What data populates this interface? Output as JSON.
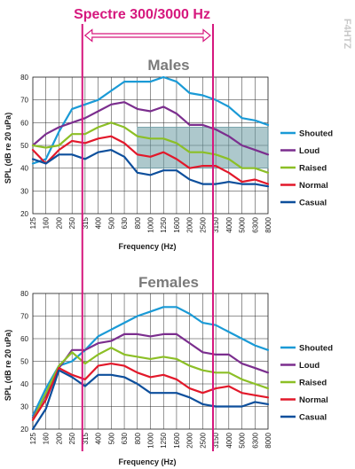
{
  "banner": {
    "title": "Spectre 300/3000 Hz",
    "color": "#d6187e",
    "band_hz": [
      300,
      3000
    ]
  },
  "watermark": "F4HTZ",
  "chart_data": [
    {
      "type": "line",
      "title": "Males",
      "xlabel": "Frequency (Hz)",
      "ylabel": "SPL (dB re 20 uPa)",
      "ylim": [
        20,
        80
      ],
      "yticks": [
        20,
        30,
        40,
        50,
        60,
        70,
        80
      ],
      "grid": true,
      "legend_position": "right",
      "highlight_region": {
        "x_from": "800",
        "x_to": "8000",
        "y_from": 40,
        "y_to": 58,
        "color": "#6a9aa3"
      },
      "categories": [
        "125",
        "160",
        "200",
        "250",
        "315",
        "400",
        "500",
        "630",
        "800",
        "1000",
        "1250",
        "1600",
        "2000",
        "2500",
        "3150",
        "4000",
        "5000",
        "6300",
        "8000"
      ],
      "series": [
        {
          "name": "Shouted",
          "color": "#1a9ad6",
          "values": [
            42,
            44,
            56,
            66,
            68,
            70,
            74,
            78,
            78,
            78,
            80,
            78,
            73,
            72,
            70,
            67,
            62,
            61,
            59
          ]
        },
        {
          "name": "Loud",
          "color": "#7b2e8e",
          "values": [
            50,
            55,
            58,
            60,
            62,
            65,
            68,
            69,
            66,
            65,
            67,
            64,
            59,
            59,
            57,
            54,
            50,
            48,
            46
          ]
        },
        {
          "name": "Raised",
          "color": "#8cbf26",
          "values": [
            50,
            49,
            50,
            55,
            55,
            58,
            60,
            58,
            54,
            53,
            53,
            51,
            47,
            47,
            46,
            44,
            40,
            40,
            38
          ]
        },
        {
          "name": "Normal",
          "color": "#e2182a",
          "values": [
            48,
            42,
            48,
            52,
            51,
            53,
            54,
            51,
            46,
            45,
            47,
            44,
            40,
            41,
            41,
            38,
            34,
            35,
            33
          ]
        },
        {
          "name": "Casual",
          "color": "#0d4f9c",
          "values": [
            44,
            42,
            46,
            46,
            44,
            47,
            48,
            45,
            38,
            37,
            39,
            39,
            35,
            33,
            33,
            34,
            33,
            33,
            32
          ]
        }
      ]
    },
    {
      "type": "line",
      "title": "Females",
      "xlabel": "Frequency (Hz)",
      "ylabel": "SPL (dB re 20 uPa)",
      "ylim": [
        20,
        80
      ],
      "yticks": [
        20,
        30,
        40,
        50,
        60,
        70,
        80
      ],
      "grid": true,
      "legend_position": "right",
      "categories": [
        "125",
        "160",
        "200",
        "250",
        "315",
        "400",
        "500",
        "630",
        "800",
        "1000",
        "1250",
        "1600",
        "2000",
        "2500",
        "3150",
        "4000",
        "5000",
        "6300",
        "8000"
      ],
      "series": [
        {
          "name": "Shouted",
          "color": "#1a9ad6",
          "values": [
            26,
            38,
            48,
            50,
            55,
            61,
            64,
            67,
            70,
            72,
            74,
            74,
            71,
            67,
            66,
            63,
            60,
            57,
            55
          ]
        },
        {
          "name": "Loud",
          "color": "#7b2e8e",
          "values": [
            25,
            35,
            47,
            55,
            55,
            58,
            59,
            62,
            62,
            61,
            62,
            62,
            58,
            54,
            53,
            53,
            49,
            47,
            45
          ]
        },
        {
          "name": "Raised",
          "color": "#8cbf26",
          "values": [
            24,
            36,
            48,
            54,
            49,
            53,
            56,
            53,
            52,
            51,
            52,
            51,
            48,
            46,
            45,
            45,
            42,
            40,
            38
          ]
        },
        {
          "name": "Normal",
          "color": "#e2182a",
          "values": [
            24,
            33,
            47,
            44,
            42,
            48,
            49,
            48,
            45,
            43,
            44,
            42,
            38,
            36,
            38,
            39,
            36,
            35,
            34
          ]
        },
        {
          "name": "Casual",
          "color": "#0d4f9c",
          "values": [
            20,
            29,
            46,
            43,
            39,
            44,
            44,
            43,
            40,
            36,
            36,
            36,
            34,
            31,
            30,
            30,
            30,
            32,
            31
          ]
        }
      ]
    }
  ]
}
